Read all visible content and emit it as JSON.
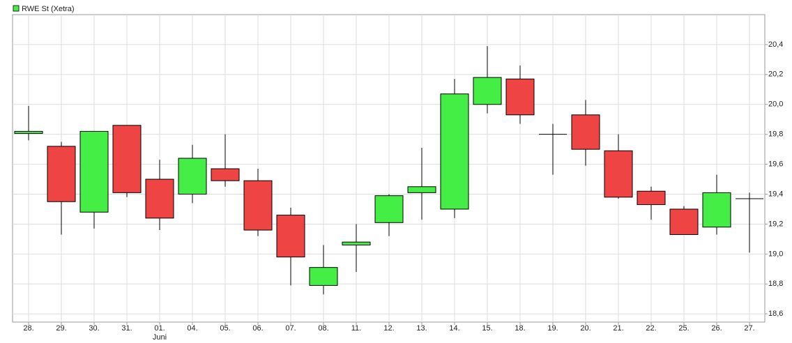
{
  "chart_data": {
    "type": "candlestick",
    "legend": "RWE St (Xetra)",
    "up_color": "#44ee44",
    "down_color": "#ee4444",
    "categories": [
      "28.",
      "29.",
      "30.",
      "31.",
      "01.",
      "04.",
      "05.",
      "06.",
      "07.",
      "08.",
      "11.",
      "12.",
      "13.",
      "14.",
      "15.",
      "18.",
      "19.",
      "20.",
      "21.",
      "22.",
      "25.",
      "26.",
      "27."
    ],
    "category_sublabels": [
      null,
      null,
      null,
      null,
      "Juni",
      null,
      null,
      null,
      null,
      null,
      null,
      null,
      null,
      null,
      null,
      null,
      null,
      null,
      null,
      null,
      null,
      null,
      null
    ],
    "open": [
      19.81,
      19.72,
      19.28,
      19.86,
      19.5,
      19.4,
      19.57,
      19.49,
      19.26,
      18.79,
      19.06,
      19.21,
      19.41,
      19.3,
      20.0,
      20.17,
      19.8,
      19.93,
      19.69,
      19.42,
      19.3,
      19.18,
      19.37
    ],
    "high": [
      19.99,
      19.75,
      19.82,
      19.86,
      19.63,
      19.73,
      19.8,
      19.57,
      19.31,
      19.06,
      19.2,
      19.4,
      19.71,
      20.17,
      20.39,
      20.26,
      19.87,
      20.03,
      19.8,
      19.45,
      19.32,
      19.53,
      19.41
    ],
    "low": [
      19.76,
      19.13,
      19.17,
      19.38,
      19.16,
      19.34,
      19.45,
      19.12,
      18.79,
      18.73,
      18.88,
      19.12,
      19.23,
      19.24,
      19.94,
      19.87,
      19.53,
      19.59,
      19.37,
      19.23,
      19.13,
      19.13,
      19.01
    ],
    "close": [
      19.82,
      19.35,
      19.82,
      19.41,
      19.24,
      19.64,
      19.49,
      19.16,
      18.98,
      18.91,
      19.08,
      19.39,
      19.45,
      20.07,
      20.18,
      19.93,
      19.8,
      19.7,
      19.38,
      19.33,
      19.13,
      19.41,
      19.37
    ],
    "ylim": [
      18.545,
      20.6
    ],
    "yticks": [
      {
        "value": 18.6,
        "label": "18,6"
      },
      {
        "value": 18.8,
        "label": "18,8"
      },
      {
        "value": 19.0,
        "label": "19,0"
      },
      {
        "value": 19.2,
        "label": "19,2"
      },
      {
        "value": 19.4,
        "label": "19,4"
      },
      {
        "value": 19.6,
        "label": "19,6"
      },
      {
        "value": 19.8,
        "label": "19,8"
      },
      {
        "value": 20.0,
        "label": "20,0"
      },
      {
        "value": 20.2,
        "label": "20,2"
      },
      {
        "value": 20.4,
        "label": "20,4"
      }
    ],
    "grid": true
  }
}
